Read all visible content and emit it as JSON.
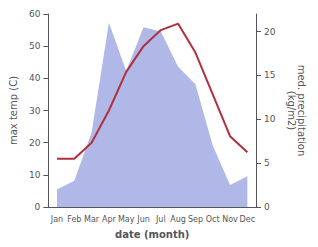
{
  "chart_data": {
    "type": "line",
    "xlabel": "date (month)",
    "ylabel": "max temp (C)",
    "y2label": "med. precipitation\n(kg/m2)",
    "categories": [
      "Jan",
      "Feb",
      "Mar",
      "Apr",
      "May",
      "Jun",
      "Jul",
      "Aug",
      "Sep",
      "Oct",
      "Nov",
      "Dec"
    ],
    "series": [
      {
        "type": "area",
        "axis": "y2",
        "color": "#b0b8e8",
        "values": [
          2,
          3,
          8.5,
          21,
          15.5,
          20.5,
          20,
          16,
          14,
          7,
          2.5,
          3.5
        ]
      },
      {
        "type": "line",
        "color": "#b03040",
        "values": [
          15,
          15,
          20,
          30,
          42,
          50,
          55,
          57,
          48,
          35,
          22,
          17
        ]
      }
    ],
    "ylim": [
      0,
      60
    ],
    "yticks": [
      0,
      10,
      20,
      30,
      40,
      50,
      60
    ],
    "y2lim": [
      0,
      22
    ],
    "y2ticks": [
      0,
      5,
      10,
      15,
      20
    ],
    "grid": false
  }
}
